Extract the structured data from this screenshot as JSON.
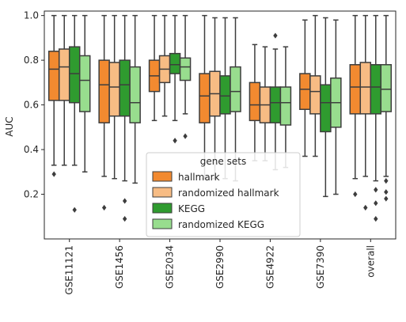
{
  "chart_data": {
    "type": "boxplot",
    "ylabel": "AUC",
    "xlabel": "",
    "ylim": [
      0.0,
      1.02
    ],
    "yticks": [
      0.2,
      0.4,
      0.6,
      0.8,
      1.0
    ],
    "ytick_labels": [
      "0.2",
      "0.4",
      "0.6",
      "0.8",
      "1.0"
    ],
    "grid": false,
    "categories": [
      "GSE11121",
      "GSE1456",
      "GSE2034",
      "GSE2990",
      "GSE4922",
      "GSE7390",
      "overall"
    ],
    "legend": {
      "title": "gene sets",
      "placement": "lower-center"
    },
    "series": [
      {
        "name": "hallmark",
        "color": "#f28a30",
        "boxes": [
          {
            "whislo": 0.33,
            "q1": 0.62,
            "med": 0.76,
            "q3": 0.84,
            "whishi": 1.0,
            "fliers": [
              0.29
            ]
          },
          {
            "whislo": 0.28,
            "q1": 0.52,
            "med": 0.69,
            "q3": 0.8,
            "whishi": 1.0,
            "fliers": [
              0.14
            ]
          },
          {
            "whislo": 0.53,
            "q1": 0.66,
            "med": 0.73,
            "q3": 0.8,
            "whishi": 1.0,
            "fliers": []
          },
          {
            "whislo": 0.27,
            "q1": 0.52,
            "med": 0.64,
            "q3": 0.74,
            "whishi": 1.0,
            "fliers": []
          },
          {
            "whislo": 0.35,
            "q1": 0.53,
            "med": 0.6,
            "q3": 0.7,
            "whishi": 0.87,
            "fliers": []
          },
          {
            "whislo": 0.37,
            "q1": 0.58,
            "med": 0.67,
            "q3": 0.74,
            "whishi": 0.98,
            "fliers": []
          },
          {
            "whislo": 0.27,
            "q1": 0.56,
            "med": 0.68,
            "q3": 0.78,
            "whishi": 1.0,
            "fliers": [
              0.2
            ]
          }
        ]
      },
      {
        "name": "randomized hallmark",
        "color": "#f7bc84",
        "boxes": [
          {
            "whislo": 0.33,
            "q1": 0.62,
            "med": 0.77,
            "q3": 0.85,
            "whishi": 1.0,
            "fliers": []
          },
          {
            "whislo": 0.27,
            "q1": 0.55,
            "med": 0.68,
            "q3": 0.79,
            "whishi": 1.0,
            "fliers": []
          },
          {
            "whislo": 0.55,
            "q1": 0.7,
            "med": 0.76,
            "q3": 0.82,
            "whishi": 1.0,
            "fliers": []
          },
          {
            "whislo": 0.27,
            "q1": 0.55,
            "med": 0.65,
            "q3": 0.75,
            "whishi": 0.99,
            "fliers": []
          },
          {
            "whislo": 0.35,
            "q1": 0.52,
            "med": 0.6,
            "q3": 0.68,
            "whishi": 0.86,
            "fliers": []
          },
          {
            "whislo": 0.37,
            "q1": 0.56,
            "med": 0.66,
            "q3": 0.73,
            "whishi": 1.0,
            "fliers": []
          },
          {
            "whislo": 0.28,
            "q1": 0.56,
            "med": 0.68,
            "q3": 0.79,
            "whishi": 1.0,
            "fliers": [
              0.14
            ]
          }
        ]
      },
      {
        "name": "KEGG",
        "color": "#2f9b2f",
        "boxes": [
          {
            "whislo": 0.33,
            "q1": 0.61,
            "med": 0.74,
            "q3": 0.86,
            "whishi": 1.0,
            "fliers": [
              0.13
            ]
          },
          {
            "whislo": 0.26,
            "q1": 0.55,
            "med": 0.69,
            "q3": 0.8,
            "whishi": 1.0,
            "fliers": [
              0.17,
              0.09
            ]
          },
          {
            "whislo": 0.53,
            "q1": 0.74,
            "med": 0.78,
            "q3": 0.83,
            "whishi": 1.0,
            "fliers": [
              0.44
            ]
          },
          {
            "whislo": 0.27,
            "q1": 0.56,
            "med": 0.64,
            "q3": 0.73,
            "whishi": 0.99,
            "fliers": []
          },
          {
            "whislo": 0.31,
            "q1": 0.52,
            "med": 0.61,
            "q3": 0.68,
            "whishi": 0.85,
            "fliers": [
              0.91
            ]
          },
          {
            "whislo": 0.19,
            "q1": 0.48,
            "med": 0.61,
            "q3": 0.69,
            "whishi": 0.99,
            "fliers": []
          },
          {
            "whislo": 0.26,
            "q1": 0.56,
            "med": 0.68,
            "q3": 0.78,
            "whishi": 1.0,
            "fliers": [
              0.22,
              0.16,
              0.09
            ]
          }
        ]
      },
      {
        "name": "randomized KEGG",
        "color": "#98dd8e",
        "boxes": [
          {
            "whislo": 0.3,
            "q1": 0.57,
            "med": 0.71,
            "q3": 0.82,
            "whishi": 1.0,
            "fliers": []
          },
          {
            "whislo": 0.25,
            "q1": 0.52,
            "med": 0.61,
            "q3": 0.77,
            "whishi": 1.0,
            "fliers": []
          },
          {
            "whislo": 0.56,
            "q1": 0.71,
            "med": 0.77,
            "q3": 0.81,
            "whishi": 1.0,
            "fliers": [
              0.46
            ]
          },
          {
            "whislo": 0.26,
            "q1": 0.57,
            "med": 0.66,
            "q3": 0.77,
            "whishi": 0.99,
            "fliers": []
          },
          {
            "whislo": 0.32,
            "q1": 0.51,
            "med": 0.61,
            "q3": 0.68,
            "whishi": 0.86,
            "fliers": []
          },
          {
            "whislo": 0.2,
            "q1": 0.5,
            "med": 0.61,
            "q3": 0.72,
            "whishi": 0.98,
            "fliers": []
          },
          {
            "whislo": 0.28,
            "q1": 0.57,
            "med": 0.67,
            "q3": 0.78,
            "whishi": 1.0,
            "fliers": [
              0.26,
              0.21,
              0.18
            ]
          }
        ]
      }
    ]
  }
}
